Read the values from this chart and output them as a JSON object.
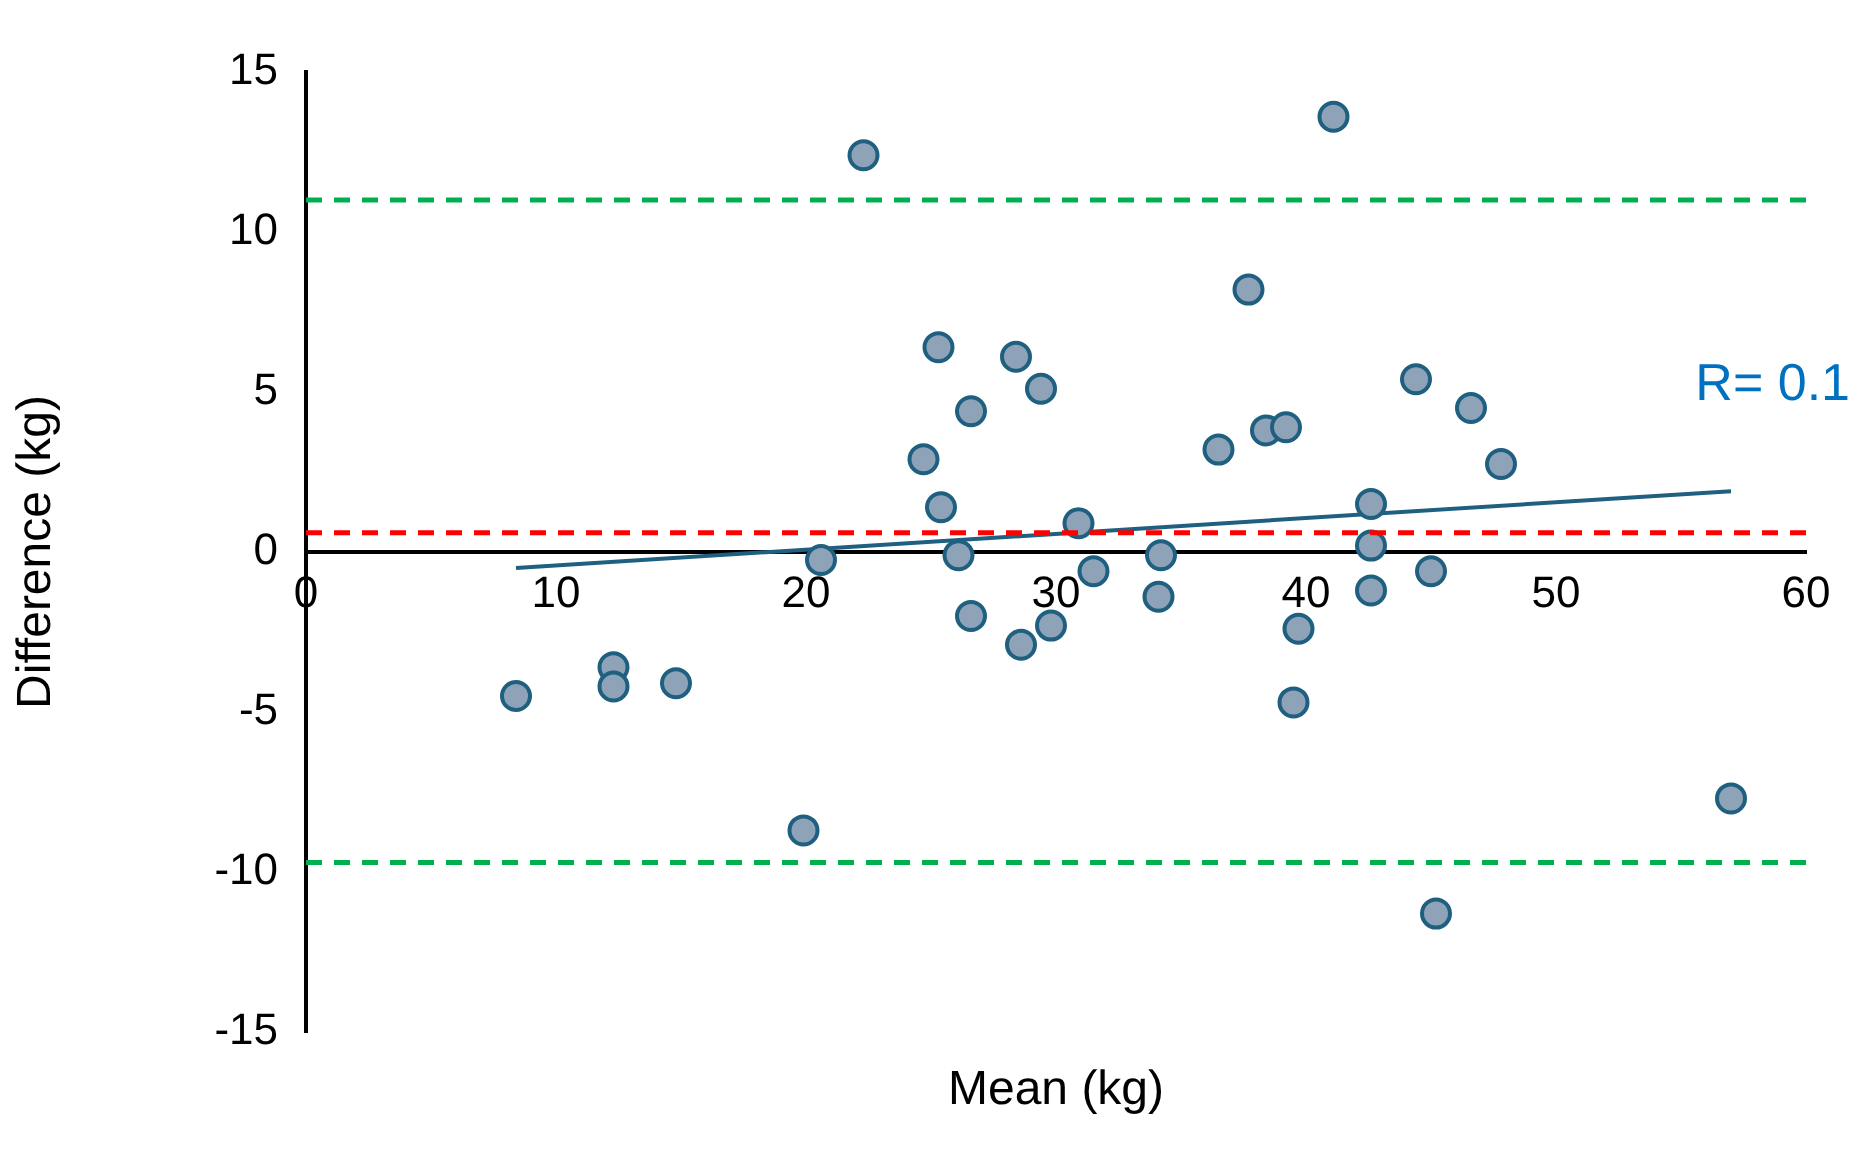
{
  "chart_data": {
    "type": "scatter",
    "xlabel": "Mean (kg)",
    "ylabel": "Difference (kg)",
    "xlim": [
      0,
      60
    ],
    "xticks": [
      0,
      10,
      20,
      30,
      40,
      50,
      60
    ],
    "ylim": [
      -15,
      15
    ],
    "yticks": [
      -15,
      -10,
      -5,
      0,
      5,
      10,
      15
    ],
    "grid": false,
    "legend": false,
    "marker": "circle",
    "series": [
      {
        "color": "#8ea3b8",
        "x": [
          8.4,
          12.3,
          12.3,
          14.8,
          19.9,
          20.6,
          22.3,
          24.7,
          25.3,
          25.4,
          26.1,
          26.6,
          26.6,
          28.4,
          28.6,
          29.4,
          29.8,
          30.9,
          31.5,
          34.1,
          34.2,
          36.5,
          37.7,
          38.4,
          39.2,
          39.7,
          39.5,
          41.1,
          42.6,
          42.6,
          42.6,
          44.4,
          45.0,
          45.2,
          46.6,
          47.8,
          57.0
        ],
        "values": [
          -4.5,
          -3.6,
          -4.2,
          -4.1,
          -8.7,
          -0.25,
          12.4,
          2.9,
          6.4,
          1.4,
          -0.1,
          4.4,
          -2.0,
          6.1,
          -2.9,
          5.1,
          -2.3,
          0.9,
          -0.6,
          -1.4,
          -0.1,
          3.2,
          8.2,
          3.8,
          3.9,
          -2.4,
          -4.7,
          13.6,
          1.5,
          0.2,
          -1.2,
          5.4,
          -0.6,
          -11.3,
          4.5,
          2.75,
          -7.7
        ]
      },
      {
        "type": "line",
        "color": "#1f5f80",
        "marker": "none",
        "x": [
          8.4,
          57.0
        ],
        "values": [
          -0.5,
          1.9
        ]
      }
    ],
    "ref_lines": [
      {
        "axis": "y",
        "value": 11,
        "color": "#00b050",
        "line_style": "dashed"
      },
      {
        "axis": "y",
        "value": 0.6,
        "color": "#ff0000",
        "line_style": "dashed"
      },
      {
        "axis": "y",
        "value": -9.7,
        "color": "#00b050",
        "line_style": "dashed"
      }
    ],
    "annotations": [
      "R= 0.1"
    ]
  }
}
